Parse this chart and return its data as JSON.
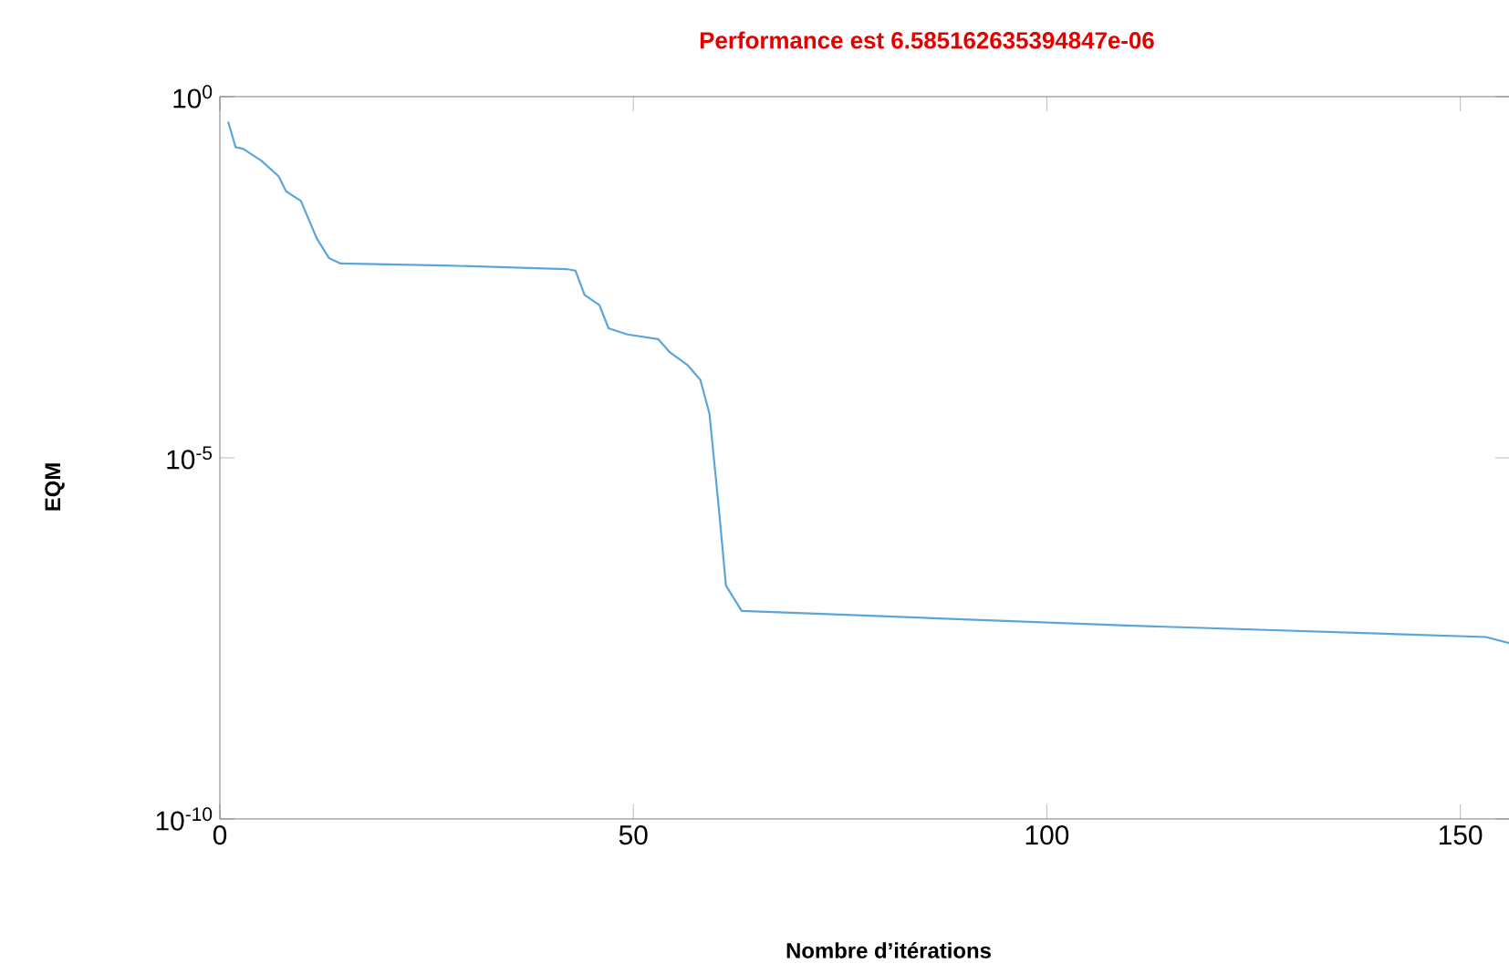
{
  "chart_data": {
    "type": "line",
    "title": "Performance est 6.585162635394847e-06",
    "xlabel": "Nombre d’itérations",
    "ylabel": "EQM",
    "log": "y",
    "grid": false,
    "marker": "none",
    "line_style": "solid",
    "xlim": [
      0,
      156
    ],
    "ylim": [
      1e-10,
      1
    ],
    "xticks": [
      0,
      50,
      100,
      150
    ],
    "yticks": [
      {
        "value": 1e-10,
        "label": "10$^{-10}$"
      },
      {
        "value": 1e-05,
        "label": "10$^{-5}$"
      },
      {
        "value": 1,
        "label": "10$^{0}$"
      }
    ],
    "series": [
      {
        "color": "#5aa5dc",
        "x": [
          1.0,
          1.9,
          2.8,
          5.0,
          7.1,
          8.0,
          9.8,
          11.7,
          13.2,
          14.6,
          27.1,
          41.9,
          43.0,
          44.1,
          45.9,
          47.0,
          49.3,
          53.0,
          54.4,
          56.6,
          58.1,
          59.2,
          60.3,
          61.2,
          63.1,
          72.8,
          108.9,
          153.1,
          156.0
        ],
        "values": [
          0.45,
          0.2,
          0.19,
          0.13,
          0.079,
          0.049,
          0.036,
          0.011,
          0.0058,
          0.0049,
          0.0046,
          0.0041,
          0.0039,
          0.0018,
          0.0013,
          0.00062,
          0.00051,
          0.00044,
          0.00029,
          0.00019,
          0.00012,
          4.1e-05,
          2.2e-06,
          1.7e-07,
          7.6e-08,
          6.9e-08,
          4.8e-08,
          3.3e-08,
          2.7e-08
        ]
      }
    ]
  }
}
